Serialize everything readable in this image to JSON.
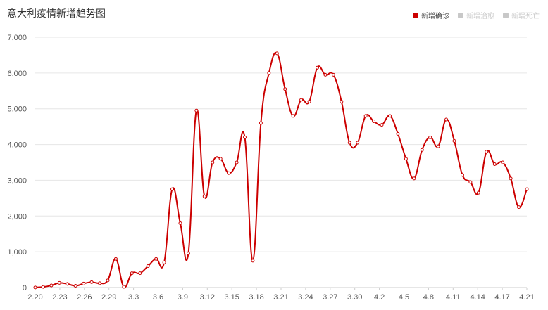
{
  "title": "意大利疫情新增趋势图",
  "legend": [
    {
      "label": "新增确诊",
      "color": "#cc0000",
      "active": true
    },
    {
      "label": "新增治愈",
      "color": "#c8c8c8",
      "active": false
    },
    {
      "label": "新增死亡",
      "color": "#c8c8c8",
      "active": false
    }
  ],
  "chart_data": {
    "type": "line",
    "x_tick_labels": [
      "2.20",
      "2.23",
      "2.26",
      "2.29",
      "3.3",
      "3.6",
      "3.9",
      "3.12",
      "3.15",
      "3.18",
      "3.21",
      "3.24",
      "3.27",
      "3.30",
      "4.2",
      "4.5",
      "4.8",
      "4.11",
      "4.14",
      "4.17",
      "4.21"
    ],
    "y_tick_labels": [
      "0",
      "1,000",
      "2,000",
      "3,000",
      "4,000",
      "5,000",
      "6,000",
      "7,000"
    ],
    "ylim": [
      0,
      7000
    ],
    "grid": true,
    "legend_position": "top-right",
    "series": [
      {
        "name": "新增确诊",
        "color": "#cc0000",
        "x": [
          "2.20",
          "2.21",
          "2.22",
          "2.23",
          "2.24",
          "2.25",
          "2.26",
          "2.27",
          "2.28",
          "2.29",
          "3.1",
          "3.2",
          "3.3",
          "3.4",
          "3.5",
          "3.6",
          "3.7",
          "3.8",
          "3.9",
          "3.10",
          "3.11",
          "3.12",
          "3.13",
          "3.14",
          "3.15",
          "3.16",
          "3.17",
          "3.18",
          "3.19",
          "3.20",
          "3.21",
          "3.22",
          "3.23",
          "3.24",
          "3.25",
          "3.26",
          "3.27",
          "3.28",
          "3.29",
          "3.30",
          "3.31",
          "4.1",
          "4.2",
          "4.3",
          "4.4",
          "4.5",
          "4.6",
          "4.7",
          "4.8",
          "4.9",
          "4.10",
          "4.11",
          "4.12",
          "4.13",
          "4.14",
          "4.15",
          "4.16",
          "4.17",
          "4.18",
          "4.19",
          "4.20",
          "4.21"
        ],
        "values": [
          3,
          17,
          58,
          130,
          100,
          50,
          110,
          150,
          120,
          200,
          800,
          20,
          400,
          400,
          600,
          800,
          700,
          2750,
          1800,
          950,
          4950,
          2550,
          3500,
          3600,
          3200,
          3500,
          4200,
          750,
          4600,
          6000,
          6550,
          5550,
          4800,
          5250,
          5200,
          6150,
          5950,
          5950,
          5200,
          4050,
          4050,
          4800,
          4650,
          4550,
          4800,
          4300,
          3600,
          3050,
          3850,
          4200,
          3950,
          4700,
          4100,
          3150,
          2950,
          2650,
          3800,
          3450,
          3500,
          3050,
          2250,
          2750
        ]
      }
    ]
  }
}
